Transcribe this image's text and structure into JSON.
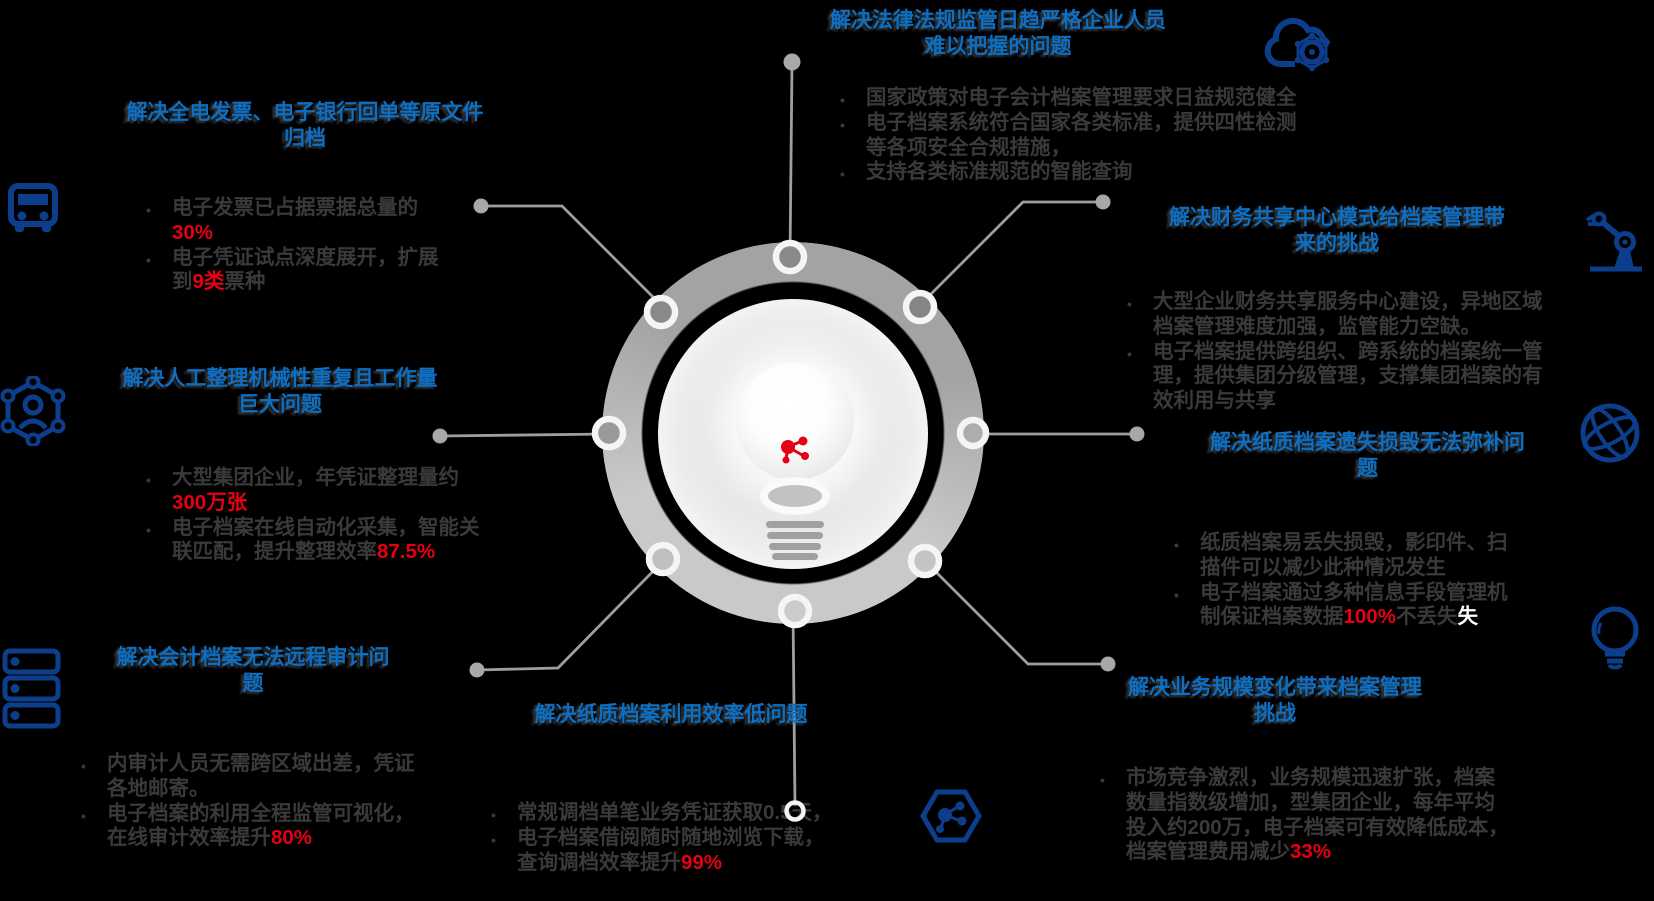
{
  "palette": {
    "title_blue": "#0d6fc4",
    "highlight_red": "#e60013",
    "body_gray": "#3a3a3a",
    "icon_navy": "#0d3e8c",
    "line_gray": "#9e9e9e",
    "ring_dark": "#a3a3a3",
    "ring_light": "#c9c9c9",
    "hidden_white": "#ffffff"
  },
  "blocks": [
    {
      "id": "top-center",
      "title_lines": [
        "解决法律法规监管日趋严格企业人员",
        "难以把握的问题"
      ],
      "lines": [
        {
          "m": true,
          "segs": [
            {
              "t": "国家政策对电子会计档案管理要求日益规范健全"
            }
          ]
        },
        {
          "m": true,
          "segs": [
            {
              "t": "电子档案系统符合国家各类标准，提供四性检测"
            }
          ]
        },
        {
          "m": false,
          "segs": [
            {
              "t": "等各项安全合规措施，"
            }
          ]
        },
        {
          "m": true,
          "segs": [
            {
              "t": "支持各类标准规范的智能查询"
            }
          ]
        }
      ]
    },
    {
      "id": "top-left",
      "title_lines": [
        "解决全电发票、电子银行回单等原文件",
        "归档"
      ],
      "lines": [
        {
          "m": true,
          "segs": [
            {
              "t": "电子发票已占据票据总量的"
            }
          ]
        },
        {
          "m": false,
          "segs": [
            {
              "t": "30%",
              "c": "red"
            }
          ]
        },
        {
          "m": true,
          "segs": [
            {
              "t": "电子凭证试点深度展开，扩展"
            }
          ]
        },
        {
          "m": false,
          "segs": [
            {
              "t": "到"
            },
            {
              "t": "9类",
              "c": "red"
            },
            {
              "t": "票种"
            }
          ]
        }
      ]
    },
    {
      "id": "left-middle",
      "title_lines": [
        "解决人工整理机械性重复且工作量",
        "巨大问题"
      ],
      "lines": [
        {
          "m": true,
          "segs": [
            {
              "t": "大型集团企业，年凭证整理量约"
            }
          ]
        },
        {
          "m": false,
          "segs": [
            {
              "t": "300万张",
              "c": "red"
            }
          ]
        },
        {
          "m": true,
          "segs": [
            {
              "t": "电子档案在线自动化采集，智能关"
            }
          ]
        },
        {
          "m": false,
          "segs": [
            {
              "t": "联匹配，提升整理效率"
            },
            {
              "t": "87.5%",
              "c": "red"
            }
          ]
        }
      ]
    },
    {
      "id": "bottom-left",
      "title_lines": [
        "解决会计档案无法远程审计问",
        "题"
      ],
      "lines": [
        {
          "m": true,
          "segs": [
            {
              "t": "内审计人员无需跨区域出差，凭证"
            }
          ]
        },
        {
          "m": false,
          "segs": [
            {
              "t": "各地邮寄。"
            }
          ]
        },
        {
          "m": true,
          "segs": [
            {
              "t": "电子档案的利用全程监管可视化，"
            }
          ]
        },
        {
          "m": false,
          "segs": [
            {
              "t": "在线审计效率提升"
            },
            {
              "t": "80%",
              "c": "red"
            }
          ]
        }
      ]
    },
    {
      "id": "bottom-center",
      "title_lines": [
        "解决纸质档案利用效率低问题"
      ],
      "lines": [
        {
          "m": true,
          "segs": [
            {
              "t": "常规调档单笔业务凭证获取0.5天，"
            }
          ]
        },
        {
          "m": true,
          "segs": [
            {
              "t": "电子档案借阅随时随地浏览下载，"
            }
          ]
        },
        {
          "m": false,
          "segs": [
            {
              "t": "查询调档效率提升"
            },
            {
              "t": "99%",
              "c": "red"
            }
          ]
        }
      ]
    },
    {
      "id": "top-right",
      "title_lines": [
        "解决财务共享中心模式给档案管理带",
        "来的挑战"
      ],
      "lines": [
        {
          "m": true,
          "segs": [
            {
              "t": "大型企业财务共享服务中心建设，异地区域"
            }
          ]
        },
        {
          "m": false,
          "segs": [
            {
              "t": "档案管理难度加强，监管能力空缺。"
            }
          ]
        },
        {
          "m": true,
          "segs": [
            {
              "t": "电子档案提供跨组织、跨系统的档案统一管"
            }
          ]
        },
        {
          "m": false,
          "segs": [
            {
              "t": "理，提供集团分级管理，支撑集团档案的有"
            }
          ]
        },
        {
          "m": false,
          "segs": [
            {
              "t": "效利用与共享"
            }
          ]
        }
      ]
    },
    {
      "id": "right-middle",
      "title_lines": [
        "解决纸质档案遗失损毁无法弥补问",
        "题"
      ],
      "lines": [
        {
          "m": true,
          "segs": [
            {
              "t": "纸质档案易丢失损毁，影印件、扫"
            }
          ]
        },
        {
          "m": false,
          "segs": [
            {
              "t": "描件可以减少此种情况发生"
            }
          ]
        },
        {
          "m": true,
          "segs": [
            {
              "t": "电子档案通过多种信息手段管理机"
            }
          ]
        },
        {
          "m": false,
          "segs": [
            {
              "t": "制保证档案数据"
            },
            {
              "t": "100%",
              "c": "red"
            },
            {
              "t": "不丢失"
            },
            {
              "t": "失",
              "c": "wht"
            }
          ]
        }
      ]
    },
    {
      "id": "bottom-right",
      "title_lines": [
        "解决业务规模变化带来档案管理",
        "挑战"
      ],
      "lines": [
        {
          "m": true,
          "segs": [
            {
              "t": "市场竞争激烈，业务规模迅速扩张，档案"
            }
          ]
        },
        {
          "m": false,
          "segs": [
            {
              "t": "数量指数级增加，型集团企业，每年平均"
            }
          ]
        },
        {
          "m": false,
          "segs": [
            {
              "t": "投入约200万，电子档案可有效降低成本，"
            }
          ]
        },
        {
          "m": false,
          "segs": [
            {
              "t": "档案管理费用减少"
            },
            {
              "t": "33%",
              "c": "red"
            }
          ]
        }
      ]
    }
  ],
  "icons": {
    "left": [
      "bus-icon",
      "user-network-icon",
      "server-icon"
    ],
    "top_right": [
      "cloud-gear-icon"
    ],
    "right": [
      "robot-arm-icon",
      "globe-icon",
      "lightbulb-icon"
    ],
    "bottom": [
      "hexagon-molecule-icon"
    ],
    "center": [
      "lightbulb-illustration",
      "red-molecule-icon"
    ]
  }
}
